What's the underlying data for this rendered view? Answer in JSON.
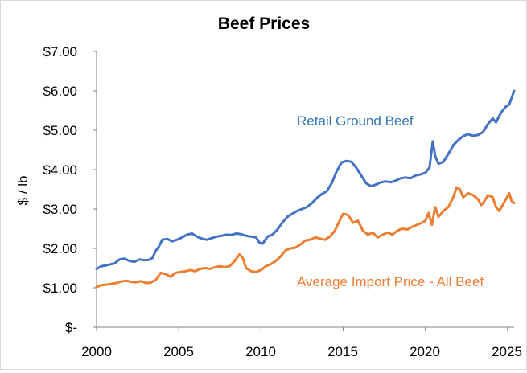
{
  "chart_data": {
    "type": "line",
    "title": "Beef Prices",
    "xlabel": "",
    "ylabel": "$ / lb",
    "xlim": [
      2000,
      2025.4
    ],
    "ylim": [
      0,
      7
    ],
    "x_ticks": [
      2000,
      2005,
      2010,
      2015,
      2020,
      2025
    ],
    "x_tick_labels": [
      "2000",
      "2005",
      "2010",
      "2015",
      "2020",
      "2025"
    ],
    "y_ticks": [
      0,
      1,
      2,
      3,
      4,
      5,
      6,
      7
    ],
    "y_tick_labels": [
      "$-",
      "$1.00",
      "$2.00",
      "$3.00",
      "$4.00",
      "$5.00",
      "$6.00",
      "$7.00"
    ],
    "grid": false,
    "legend": "inline labels",
    "series": [
      {
        "name": "Retail Ground Beef",
        "color": "#4472c4",
        "points": [
          [
            2000.0,
            1.48
          ],
          [
            2000.3,
            1.55
          ],
          [
            2000.6,
            1.57
          ],
          [
            2000.9,
            1.6
          ],
          [
            2001.1,
            1.62
          ],
          [
            2001.4,
            1.72
          ],
          [
            2001.7,
            1.74
          ],
          [
            2002.0,
            1.68
          ],
          [
            2002.3,
            1.66
          ],
          [
            2002.6,
            1.72
          ],
          [
            2002.9,
            1.7
          ],
          [
            2003.2,
            1.71
          ],
          [
            2003.4,
            1.76
          ],
          [
            2003.6,
            1.94
          ],
          [
            2003.8,
            2.05
          ],
          [
            2004.0,
            2.22
          ],
          [
            2004.3,
            2.24
          ],
          [
            2004.6,
            2.18
          ],
          [
            2004.9,
            2.22
          ],
          [
            2005.2,
            2.28
          ],
          [
            2005.5,
            2.35
          ],
          [
            2005.8,
            2.38
          ],
          [
            2006.1,
            2.3
          ],
          [
            2006.4,
            2.25
          ],
          [
            2006.7,
            2.22
          ],
          [
            2007.0,
            2.26
          ],
          [
            2007.3,
            2.3
          ],
          [
            2007.6,
            2.32
          ],
          [
            2007.9,
            2.35
          ],
          [
            2008.2,
            2.34
          ],
          [
            2008.5,
            2.38
          ],
          [
            2008.8,
            2.36
          ],
          [
            2009.1,
            2.32
          ],
          [
            2009.4,
            2.3
          ],
          [
            2009.7,
            2.28
          ],
          [
            2009.9,
            2.15
          ],
          [
            2010.1,
            2.12
          ],
          [
            2010.4,
            2.3
          ],
          [
            2010.7,
            2.35
          ],
          [
            2011.0,
            2.48
          ],
          [
            2011.3,
            2.65
          ],
          [
            2011.6,
            2.8
          ],
          [
            2011.9,
            2.88
          ],
          [
            2012.2,
            2.95
          ],
          [
            2012.5,
            3.0
          ],
          [
            2012.8,
            3.05
          ],
          [
            2013.1,
            3.15
          ],
          [
            2013.4,
            3.28
          ],
          [
            2013.7,
            3.38
          ],
          [
            2014.0,
            3.45
          ],
          [
            2014.3,
            3.65
          ],
          [
            2014.6,
            3.95
          ],
          [
            2014.9,
            4.18
          ],
          [
            2015.2,
            4.22
          ],
          [
            2015.5,
            4.2
          ],
          [
            2015.8,
            4.05
          ],
          [
            2016.1,
            3.85
          ],
          [
            2016.4,
            3.65
          ],
          [
            2016.7,
            3.58
          ],
          [
            2017.0,
            3.62
          ],
          [
            2017.3,
            3.68
          ],
          [
            2017.6,
            3.7
          ],
          [
            2017.9,
            3.68
          ],
          [
            2018.2,
            3.72
          ],
          [
            2018.5,
            3.78
          ],
          [
            2018.8,
            3.8
          ],
          [
            2019.1,
            3.78
          ],
          [
            2019.4,
            3.85
          ],
          [
            2019.7,
            3.88
          ],
          [
            2020.0,
            3.92
          ],
          [
            2020.25,
            4.05
          ],
          [
            2020.45,
            4.72
          ],
          [
            2020.6,
            4.35
          ],
          [
            2020.8,
            4.15
          ],
          [
            2021.1,
            4.2
          ],
          [
            2021.4,
            4.4
          ],
          [
            2021.7,
            4.62
          ],
          [
            2022.0,
            4.75
          ],
          [
            2022.3,
            4.85
          ],
          [
            2022.6,
            4.9
          ],
          [
            2022.9,
            4.86
          ],
          [
            2023.2,
            4.88
          ],
          [
            2023.5,
            4.95
          ],
          [
            2023.8,
            5.15
          ],
          [
            2024.1,
            5.3
          ],
          [
            2024.3,
            5.2
          ],
          [
            2024.6,
            5.45
          ],
          [
            2024.9,
            5.6
          ],
          [
            2025.1,
            5.65
          ],
          [
            2025.4,
            6.0
          ]
        ]
      },
      {
        "name": "Average Import Price - All Beef",
        "color": "#ed7d31",
        "points": [
          [
            2000.0,
            1.02
          ],
          [
            2000.3,
            1.07
          ],
          [
            2000.6,
            1.08
          ],
          [
            2000.9,
            1.1
          ],
          [
            2001.2,
            1.12
          ],
          [
            2001.5,
            1.16
          ],
          [
            2001.8,
            1.18
          ],
          [
            2002.1,
            1.15
          ],
          [
            2002.4,
            1.14
          ],
          [
            2002.7,
            1.17
          ],
          [
            2003.0,
            1.12
          ],
          [
            2003.3,
            1.13
          ],
          [
            2003.6,
            1.2
          ],
          [
            2003.9,
            1.38
          ],
          [
            2004.2,
            1.35
          ],
          [
            2004.5,
            1.28
          ],
          [
            2004.8,
            1.38
          ],
          [
            2005.1,
            1.4
          ],
          [
            2005.4,
            1.42
          ],
          [
            2005.7,
            1.45
          ],
          [
            2006.0,
            1.42
          ],
          [
            2006.3,
            1.48
          ],
          [
            2006.6,
            1.5
          ],
          [
            2006.9,
            1.48
          ],
          [
            2007.2,
            1.52
          ],
          [
            2007.5,
            1.55
          ],
          [
            2007.8,
            1.52
          ],
          [
            2008.1,
            1.55
          ],
          [
            2008.4,
            1.68
          ],
          [
            2008.7,
            1.85
          ],
          [
            2008.9,
            1.75
          ],
          [
            2009.1,
            1.5
          ],
          [
            2009.4,
            1.42
          ],
          [
            2009.7,
            1.4
          ],
          [
            2010.0,
            1.45
          ],
          [
            2010.3,
            1.55
          ],
          [
            2010.6,
            1.6
          ],
          [
            2010.9,
            1.68
          ],
          [
            2011.2,
            1.8
          ],
          [
            2011.5,
            1.95
          ],
          [
            2011.8,
            2.0
          ],
          [
            2012.1,
            2.02
          ],
          [
            2012.4,
            2.1
          ],
          [
            2012.7,
            2.2
          ],
          [
            2013.0,
            2.22
          ],
          [
            2013.3,
            2.28
          ],
          [
            2013.6,
            2.25
          ],
          [
            2013.9,
            2.22
          ],
          [
            2014.2,
            2.3
          ],
          [
            2014.5,
            2.45
          ],
          [
            2014.8,
            2.72
          ],
          [
            2015.0,
            2.88
          ],
          [
            2015.3,
            2.85
          ],
          [
            2015.6,
            2.65
          ],
          [
            2015.9,
            2.7
          ],
          [
            2016.2,
            2.45
          ],
          [
            2016.5,
            2.35
          ],
          [
            2016.8,
            2.4
          ],
          [
            2017.1,
            2.28
          ],
          [
            2017.4,
            2.35
          ],
          [
            2017.7,
            2.4
          ],
          [
            2018.0,
            2.35
          ],
          [
            2018.3,
            2.45
          ],
          [
            2018.6,
            2.5
          ],
          [
            2018.9,
            2.48
          ],
          [
            2019.2,
            2.55
          ],
          [
            2019.5,
            2.6
          ],
          [
            2019.8,
            2.65
          ],
          [
            2020.0,
            2.7
          ],
          [
            2020.2,
            2.9
          ],
          [
            2020.4,
            2.6
          ],
          [
            2020.6,
            3.05
          ],
          [
            2020.8,
            2.8
          ],
          [
            2021.1,
            2.95
          ],
          [
            2021.4,
            3.05
          ],
          [
            2021.7,
            3.3
          ],
          [
            2021.9,
            3.55
          ],
          [
            2022.1,
            3.5
          ],
          [
            2022.3,
            3.3
          ],
          [
            2022.6,
            3.4
          ],
          [
            2022.9,
            3.35
          ],
          [
            2023.2,
            3.25
          ],
          [
            2023.4,
            3.1
          ],
          [
            2023.6,
            3.2
          ],
          [
            2023.8,
            3.35
          ],
          [
            2024.1,
            3.3
          ],
          [
            2024.3,
            3.05
          ],
          [
            2024.5,
            2.95
          ],
          [
            2024.7,
            3.1
          ],
          [
            2024.9,
            3.25
          ],
          [
            2025.1,
            3.4
          ],
          [
            2025.25,
            3.2
          ],
          [
            2025.4,
            3.15
          ]
        ]
      }
    ]
  }
}
